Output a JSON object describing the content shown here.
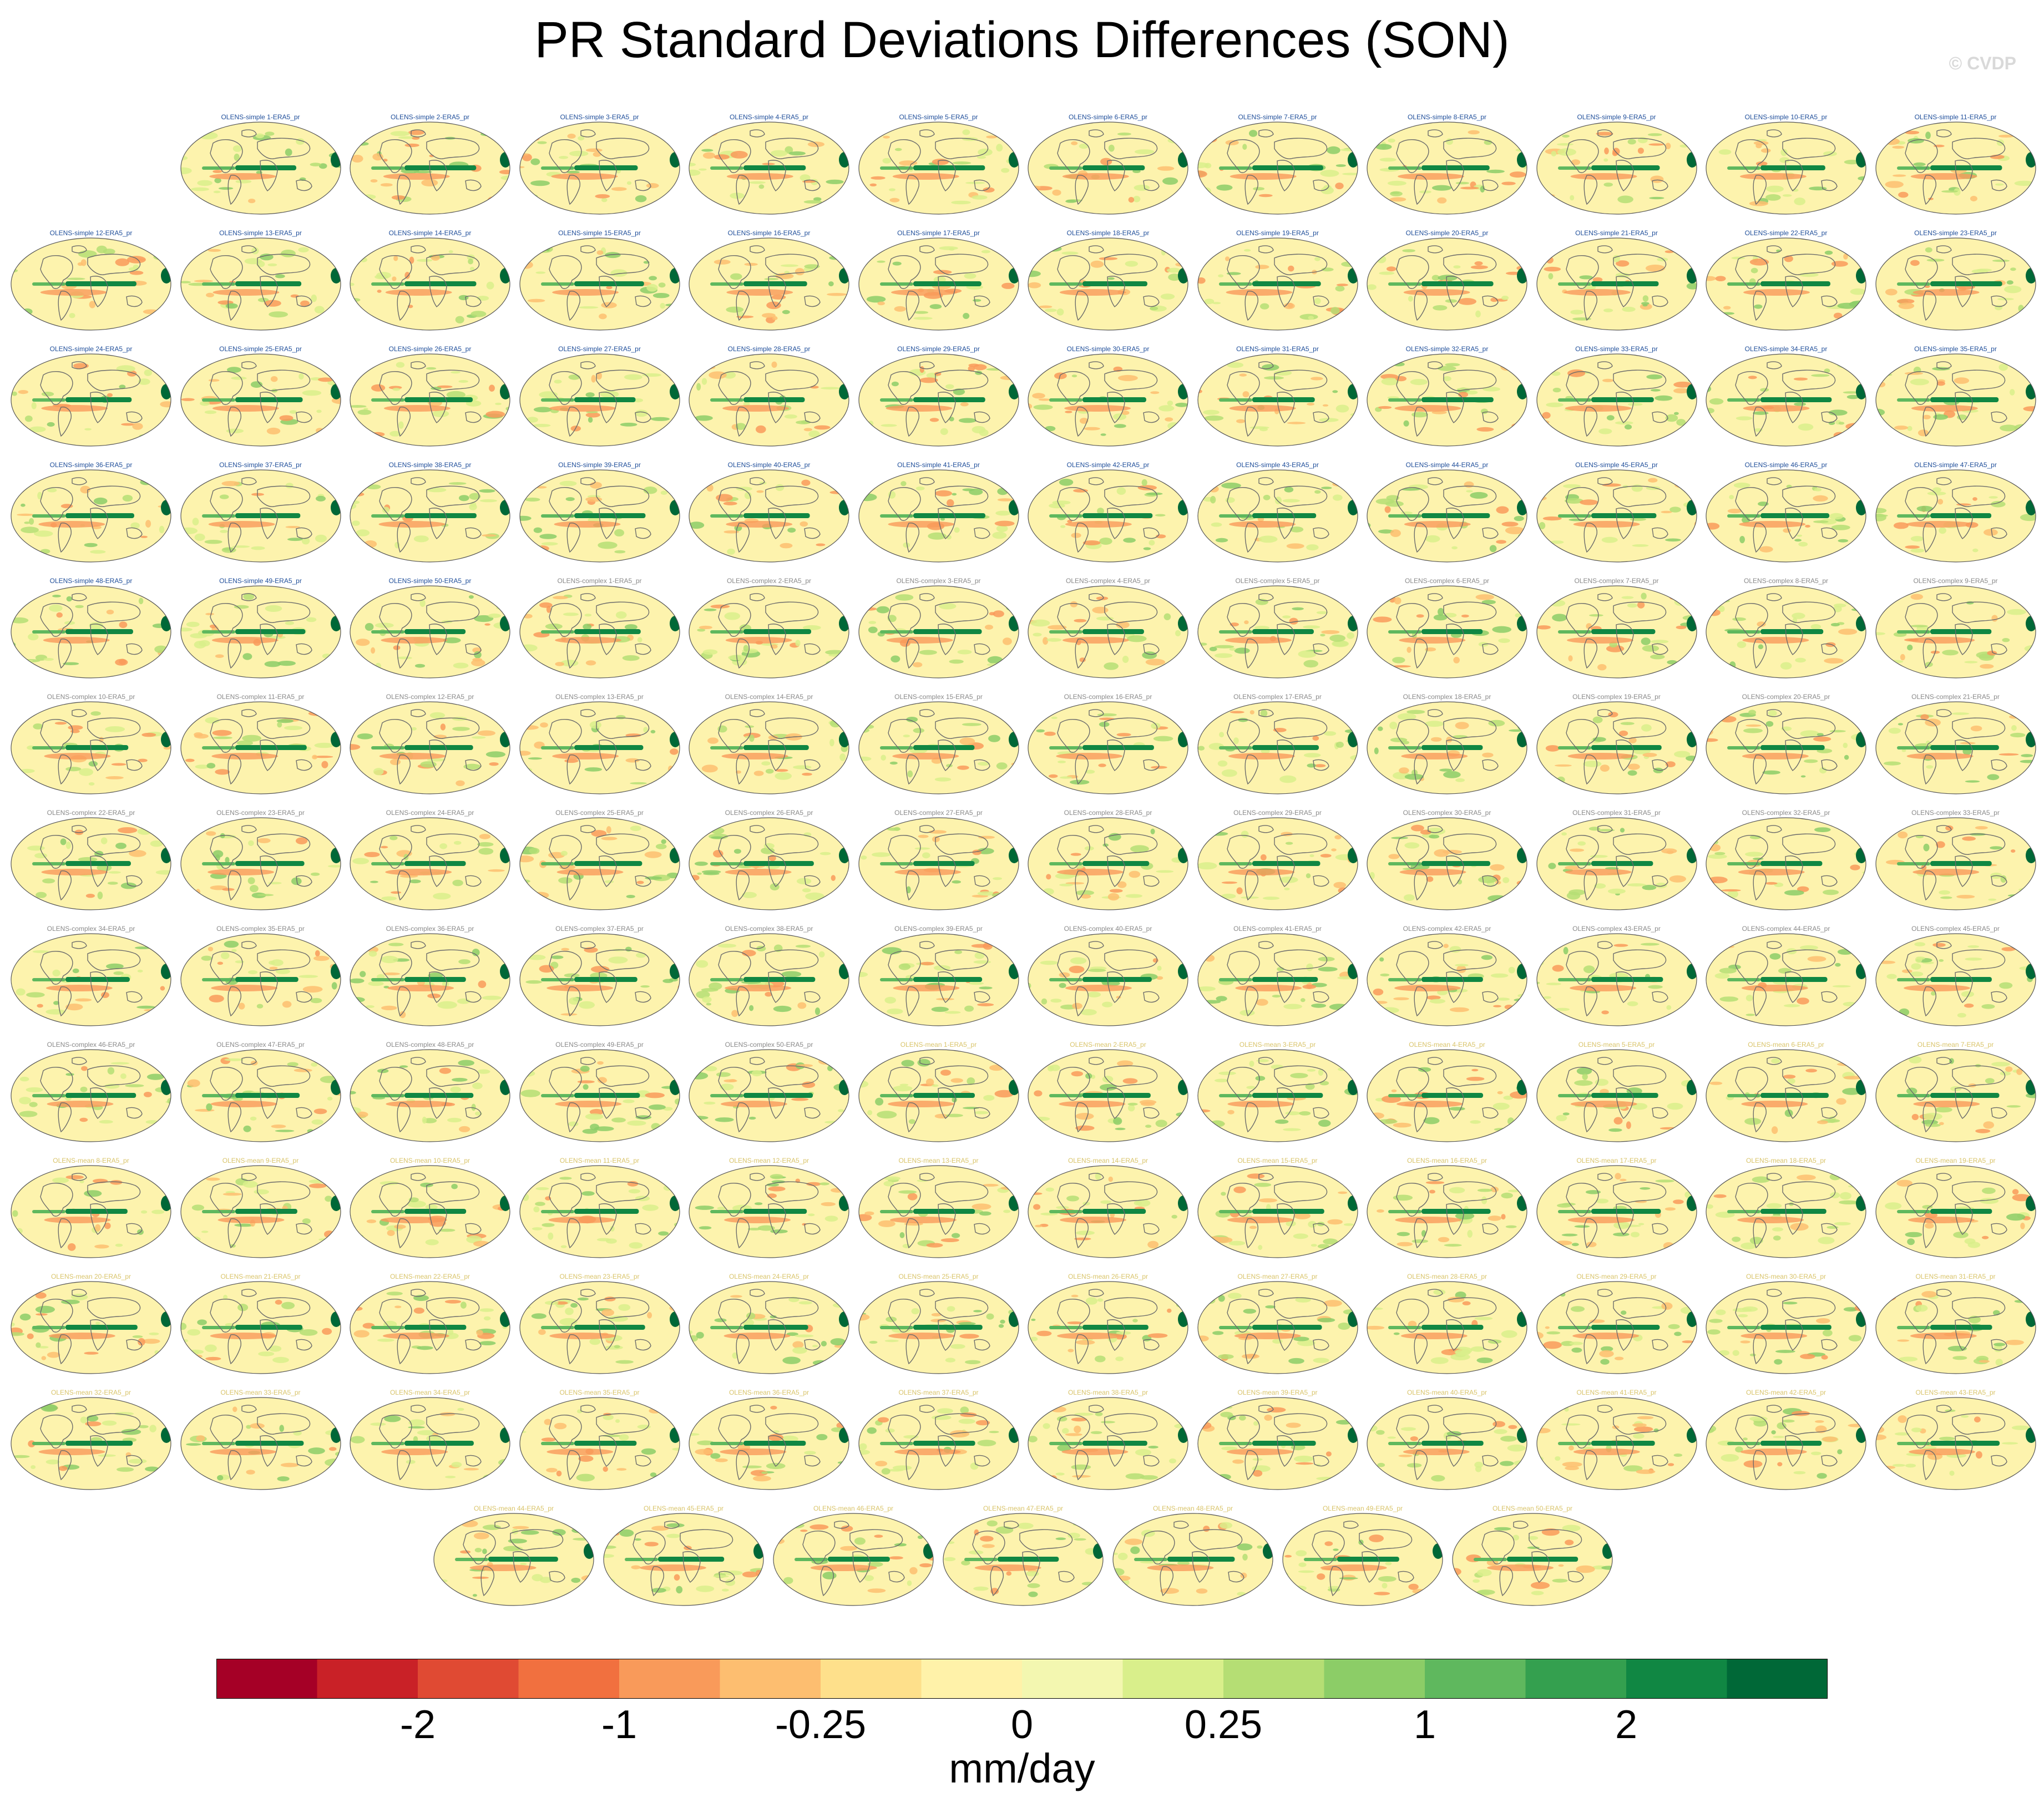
{
  "title": "PR Standard Deviations Differences (SON)",
  "watermark": "© CVDP",
  "chart_data": {
    "type": "heatmap",
    "title": "PR Standard Deviations Differences (SON)",
    "projection": "global map panels (one per ensemble member minus ERA5)",
    "groups": [
      {
        "name": "OLENS-simple",
        "members": 50,
        "label_color": "#1f4e9a"
      },
      {
        "name": "OLENS-complex",
        "members": 50,
        "label_color": "#8a8a8a"
      },
      {
        "name": "OLENS-mean",
        "members": 50,
        "label_color": "#d9c46a"
      }
    ],
    "panel_label_format": "{group} {n}-ERA5_pr",
    "panel_labels": [
      "OLENS-simple 1-ERA5_pr",
      "OLENS-simple 2-ERA5_pr",
      "OLENS-simple 3-ERA5_pr",
      "OLENS-simple 4-ERA5_pr",
      "OLENS-simple 5-ERA5_pr",
      "OLENS-simple 6-ERA5_pr",
      "OLENS-simple 7-ERA5_pr",
      "OLENS-simple 8-ERA5_pr",
      "OLENS-simple 9-ERA5_pr",
      "OLENS-simple 10-ERA5_pr",
      "OLENS-simple 11-ERA5_pr",
      "OLENS-simple 12-ERA5_pr",
      "OLENS-simple 13-ERA5_pr",
      "OLENS-simple 14-ERA5_pr",
      "OLENS-simple 15-ERA5_pr",
      "OLENS-simple 16-ERA5_pr",
      "OLENS-simple 17-ERA5_pr",
      "OLENS-simple 18-ERA5_pr",
      "OLENS-simple 19-ERA5_pr",
      "OLENS-simple 20-ERA5_pr",
      "OLENS-simple 21-ERA5_pr",
      "OLENS-simple 22-ERA5_pr",
      "OLENS-simple 23-ERA5_pr",
      "OLENS-simple 24-ERA5_pr",
      "OLENS-simple 25-ERA5_pr",
      "OLENS-simple 26-ERA5_pr",
      "OLENS-simple 27-ERA5_pr",
      "OLENS-simple 28-ERA5_pr",
      "OLENS-simple 29-ERA5_pr",
      "OLENS-simple 30-ERA5_pr",
      "OLENS-simple 31-ERA5_pr",
      "OLENS-simple 32-ERA5_pr",
      "OLENS-simple 33-ERA5_pr",
      "OLENS-simple 34-ERA5_pr",
      "OLENS-simple 35-ERA5_pr",
      "OLENS-simple 36-ERA5_pr",
      "OLENS-simple 37-ERA5_pr",
      "OLENS-simple 38-ERA5_pr",
      "OLENS-simple 39-ERA5_pr",
      "OLENS-simple 40-ERA5_pr",
      "OLENS-simple 41-ERA5_pr",
      "OLENS-simple 42-ERA5_pr",
      "OLENS-simple 43-ERA5_pr",
      "OLENS-simple 44-ERA5_pr",
      "OLENS-simple 45-ERA5_pr",
      "OLENS-simple 46-ERA5_pr",
      "OLENS-simple 47-ERA5_pr",
      "OLENS-simple 48-ERA5_pr",
      "OLENS-simple 49-ERA5_pr",
      "OLENS-simple 50-ERA5_pr",
      "OLENS-complex 1-ERA5_pr",
      "OLENS-complex 2-ERA5_pr",
      "OLENS-complex 3-ERA5_pr",
      "OLENS-complex 4-ERA5_pr",
      "OLENS-complex 5-ERA5_pr",
      "OLENS-complex 6-ERA5_pr",
      "OLENS-complex 7-ERA5_pr",
      "OLENS-complex 8-ERA5_pr",
      "OLENS-complex 9-ERA5_pr",
      "OLENS-complex 10-ERA5_pr",
      "OLENS-complex 11-ERA5_pr",
      "OLENS-complex 12-ERA5_pr",
      "OLENS-complex 13-ERA5_pr",
      "OLENS-complex 14-ERA5_pr",
      "OLENS-complex 15-ERA5_pr",
      "OLENS-complex 16-ERA5_pr",
      "OLENS-complex 17-ERA5_pr",
      "OLENS-complex 18-ERA5_pr",
      "OLENS-complex 19-ERA5_pr",
      "OLENS-complex 20-ERA5_pr",
      "OLENS-complex 21-ERA5_pr",
      "OLENS-complex 22-ERA5_pr",
      "OLENS-complex 23-ERA5_pr",
      "OLENS-complex 24-ERA5_pr",
      "OLENS-complex 25-ERA5_pr",
      "OLENS-complex 26-ERA5_pr",
      "OLENS-complex 27-ERA5_pr",
      "OLENS-complex 28-ERA5_pr",
      "OLENS-complex 29-ERA5_pr",
      "OLENS-complex 30-ERA5_pr",
      "OLENS-complex 31-ERA5_pr",
      "OLENS-complex 32-ERA5_pr",
      "OLENS-complex 33-ERA5_pr",
      "OLENS-complex 34-ERA5_pr",
      "OLENS-complex 35-ERA5_pr",
      "OLENS-complex 36-ERA5_pr",
      "OLENS-complex 37-ERA5_pr",
      "OLENS-complex 38-ERA5_pr",
      "OLENS-complex 39-ERA5_pr",
      "OLENS-complex 40-ERA5_pr",
      "OLENS-complex 41-ERA5_pr",
      "OLENS-complex 42-ERA5_pr",
      "OLENS-complex 43-ERA5_pr",
      "OLENS-complex 44-ERA5_pr",
      "OLENS-complex 45-ERA5_pr",
      "OLENS-complex 46-ERA5_pr",
      "OLENS-complex 47-ERA5_pr",
      "OLENS-complex 48-ERA5_pr",
      "OLENS-complex 49-ERA5_pr",
      "OLENS-complex 50-ERA5_pr",
      "OLENS-mean 1-ERA5_pr",
      "OLENS-mean 2-ERA5_pr",
      "OLENS-mean 3-ERA5_pr",
      "OLENS-mean 4-ERA5_pr",
      "OLENS-mean 5-ERA5_pr",
      "OLENS-mean 6-ERA5_pr",
      "OLENS-mean 7-ERA5_pr",
      "OLENS-mean 8-ERA5_pr",
      "OLENS-mean 9-ERA5_pr",
      "OLENS-mean 10-ERA5_pr",
      "OLENS-mean 11-ERA5_pr",
      "OLENS-mean 12-ERA5_pr",
      "OLENS-mean 13-ERA5_pr",
      "OLENS-mean 14-ERA5_pr",
      "OLENS-mean 15-ERA5_pr",
      "OLENS-mean 16-ERA5_pr",
      "OLENS-mean 17-ERA5_pr",
      "OLENS-mean 18-ERA5_pr",
      "OLENS-mean 19-ERA5_pr",
      "OLENS-mean 20-ERA5_pr",
      "OLENS-mean 21-ERA5_pr",
      "OLENS-mean 22-ERA5_pr",
      "OLENS-mean 23-ERA5_pr",
      "OLENS-mean 24-ERA5_pr",
      "OLENS-mean 25-ERA5_pr",
      "OLENS-mean 26-ERA5_pr",
      "OLENS-mean 27-ERA5_pr",
      "OLENS-mean 28-ERA5_pr",
      "OLENS-mean 29-ERA5_pr",
      "OLENS-mean 30-ERA5_pr",
      "OLENS-mean 31-ERA5_pr",
      "OLENS-mean 32-ERA5_pr",
      "OLENS-mean 33-ERA5_pr",
      "OLENS-mean 34-ERA5_pr",
      "OLENS-mean 35-ERA5_pr",
      "OLENS-mean 36-ERA5_pr",
      "OLENS-mean 37-ERA5_pr",
      "OLENS-mean 38-ERA5_pr",
      "OLENS-mean 39-ERA5_pr",
      "OLENS-mean 40-ERA5_pr",
      "OLENS-mean 41-ERA5_pr",
      "OLENS-mean 42-ERA5_pr",
      "OLENS-mean 43-ERA5_pr",
      "OLENS-mean 44-ERA5_pr",
      "OLENS-mean 45-ERA5_pr",
      "OLENS-mean 46-ERA5_pr",
      "OLENS-mean 47-ERA5_pr",
      "OLENS-mean 48-ERA5_pr",
      "OLENS-mean 49-ERA5_pr",
      "OLENS-mean 50-ERA5_pr"
    ],
    "colorbar": {
      "units": "mm/day",
      "levels": [
        -3,
        -2.5,
        -2,
        -1.5,
        -1,
        -0.5,
        -0.25,
        -0.1,
        0,
        0.1,
        0.25,
        0.5,
        1,
        1.5,
        2,
        2.5,
        3
      ],
      "tick_labels": [
        {
          "level": -2,
          "label": "-2"
        },
        {
          "level": -1,
          "label": "-1"
        },
        {
          "level": -0.25,
          "label": "-0.25"
        },
        {
          "level": 0,
          "label": "0"
        },
        {
          "level": 0.25,
          "label": "0.25"
        },
        {
          "level": 1,
          "label": "1"
        },
        {
          "level": 2,
          "label": "2"
        }
      ],
      "colors": [
        "#a50026",
        "#c92127",
        "#e04a33",
        "#f1703f",
        "#f99a5a",
        "#fdbe70",
        "#fee08b",
        "#fff2a9",
        "#f3f7b0",
        "#d9ef8b",
        "#b5de74",
        "#8ccd67",
        "#5fb85e",
        "#34a04f",
        "#108743",
        "#006837"
      ]
    }
  }
}
